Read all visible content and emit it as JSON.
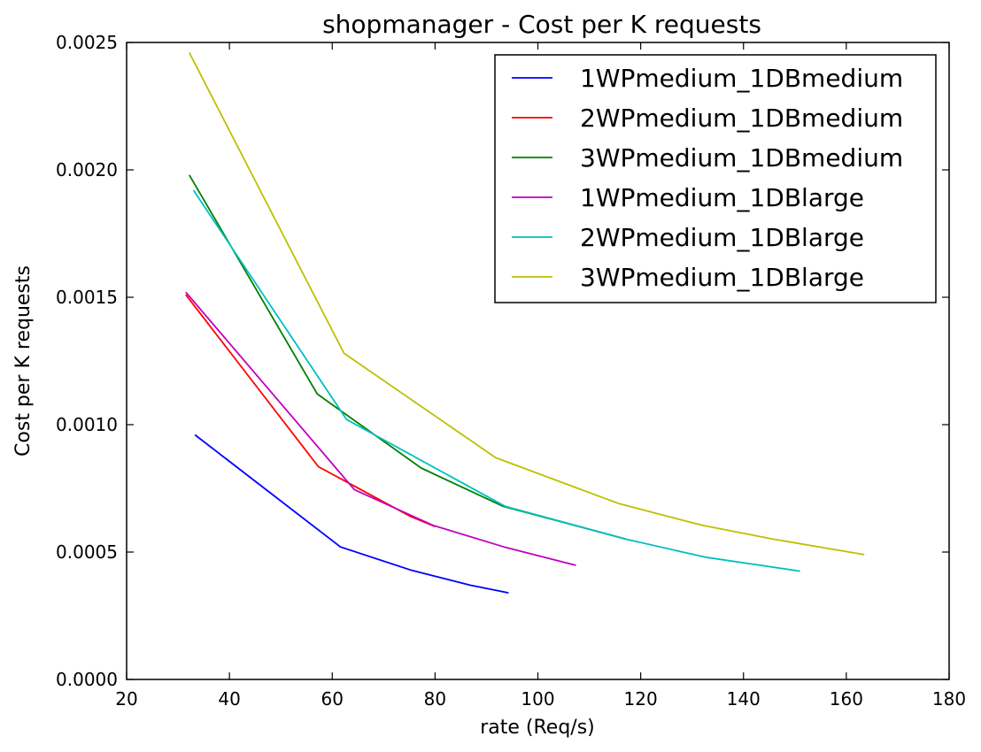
{
  "chart_data": {
    "type": "line",
    "title": "shopmanager  - Cost per K requests",
    "xlabel": "rate (Req/s)",
    "ylabel": "Cost per K requests",
    "xlim": [
      20,
      180
    ],
    "ylim": [
      0,
      0.0025
    ],
    "xticks": [
      "20",
      "40",
      "60",
      "80",
      "100",
      "120",
      "140",
      "160",
      "180"
    ],
    "yticks": [
      "0.0000",
      "0.0005",
      "0.0010",
      "0.0015",
      "0.0020",
      "0.0025"
    ],
    "grid": false,
    "legend_position": "top-right",
    "series": [
      {
        "name": "1WPmedium_1DBmedium",
        "color": "#0000ff",
        "x": [
          33.3,
          61.6,
          75.2,
          86.8,
          94.3
        ],
        "y": [
          0.00096,
          0.00052,
          0.00043,
          0.00037,
          0.00034
        ]
      },
      {
        "name": "2WPmedium_1DBmedium",
        "color": "#ff0000",
        "x": [
          31.5,
          57.3,
          75.2,
          80.0
        ],
        "y": [
          0.00151,
          0.000835,
          0.00064,
          0.0006
        ]
      },
      {
        "name": "3WPmedium_1DBmedium",
        "color": "#008000",
        "x": [
          32.2,
          57.1,
          77.3,
          93.2,
          117.3
        ],
        "y": [
          0.00198,
          0.00112,
          0.00083,
          0.00068,
          0.00055
        ]
      },
      {
        "name": "1WPmedium_1DBlarge",
        "color": "#bf00bf",
        "x": [
          31.5,
          64.3,
          79.6,
          93.4,
          107.4
        ],
        "y": [
          0.00152,
          0.000745,
          0.000605,
          0.00052,
          0.000448
        ]
      },
      {
        "name": "2WPmedium_1DBlarge",
        "color": "#00bfbf",
        "x": [
          33.0,
          62.8,
          93.6,
          117.3,
          132.6,
          151.0
        ],
        "y": [
          0.00192,
          0.00102,
          0.00068,
          0.00055,
          0.00048,
          0.000425
        ]
      },
      {
        "name": "3WPmedium_1DBlarge",
        "color": "#bfbf00",
        "x": [
          32.2,
          62.3,
          91.8,
          115.8,
          132.0,
          146.0,
          163.5
        ],
        "y": [
          0.00246,
          0.00128,
          0.00087,
          0.00069,
          0.000605,
          0.00055,
          0.00049
        ]
      }
    ]
  }
}
